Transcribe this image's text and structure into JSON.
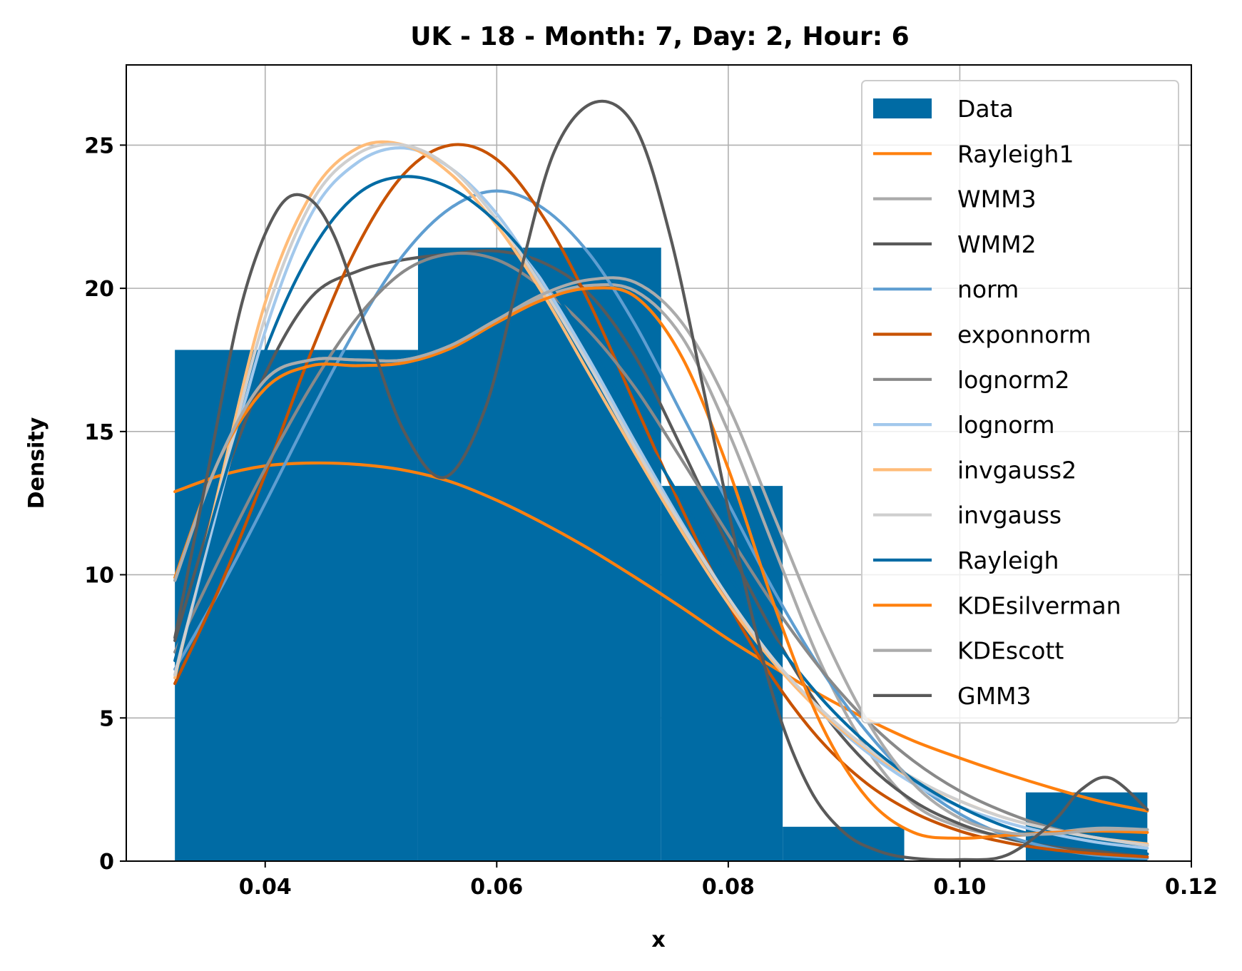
{
  "chart_data": {
    "type": "bar",
    "title": "UK - 18 - Month: 7, Day: 2, Hour: 6",
    "xlabel": "x",
    "ylabel": "Density",
    "xlim": [
      0.028,
      0.12
    ],
    "ylim": [
      0,
      27.8
    ],
    "xticks": [
      0.04,
      0.06,
      0.08,
      0.1,
      0.12
    ],
    "xtick_labels": [
      "0.04",
      "0.06",
      "0.08",
      "0.10",
      "0.12"
    ],
    "yticks": [
      0,
      5,
      10,
      15,
      20,
      25
    ],
    "ytick_labels": [
      "0",
      "5",
      "10",
      "15",
      "20",
      "25"
    ],
    "grid": true,
    "legend_position": "top-right",
    "histogram": {
      "name": "Data",
      "color": "#006BA4",
      "bins": [
        {
          "x0": 0.0322,
          "x1": 0.0532,
          "value": 17.85
        },
        {
          "x0": 0.0532,
          "x1": 0.0742,
          "value": 21.42
        },
        {
          "x0": 0.0742,
          "x1": 0.0847,
          "value": 13.1
        },
        {
          "x0": 0.0847,
          "x1": 0.0952,
          "value": 1.2
        },
        {
          "x0": 0.0952,
          "x1": 0.1057,
          "value": 0
        },
        {
          "x0": 0.1057,
          "x1": 0.1162,
          "value": 2.4
        }
      ]
    },
    "series": [
      {
        "name": "Rayleigh1",
        "color": "#FF800E",
        "x": [
          0.0322,
          0.036,
          0.04,
          0.044,
          0.048,
          0.052,
          0.056,
          0.06,
          0.064,
          0.068,
          0.072,
          0.076,
          0.08,
          0.084,
          0.088,
          0.092,
          0.096,
          0.1,
          0.104,
          0.108,
          0.112,
          0.1162
        ],
        "y": [
          12.9,
          13.45,
          13.8,
          13.9,
          13.85,
          13.65,
          13.25,
          12.6,
          11.8,
          10.9,
          9.9,
          8.85,
          7.75,
          6.75,
          5.8,
          4.95,
          4.2,
          3.6,
          3.05,
          2.55,
          2.1,
          1.75
        ]
      },
      {
        "name": "WMM3",
        "color": "#ABABAB",
        "x": [
          0.0322,
          0.036,
          0.04,
          0.044,
          0.048,
          0.052,
          0.056,
          0.06,
          0.064,
          0.068,
          0.072,
          0.076,
          0.08,
          0.084,
          0.088,
          0.092,
          0.096,
          0.1,
          0.104,
          0.108,
          0.112,
          0.1162
        ],
        "y": [
          9.8,
          14.0,
          16.8,
          17.5,
          17.5,
          17.5,
          18.0,
          18.9,
          19.7,
          20.1,
          19.9,
          18.3,
          15.0,
          10.9,
          6.9,
          3.9,
          2.0,
          1.2,
          0.9,
          1.0,
          1.15,
          1.1
        ]
      },
      {
        "name": "WMM2",
        "color": "#595959",
        "x": [
          0.0322,
          0.036,
          0.04,
          0.044,
          0.048,
          0.052,
          0.056,
          0.06,
          0.064,
          0.068,
          0.072,
          0.076,
          0.08,
          0.084,
          0.088,
          0.092,
          0.096,
          0.1,
          0.104,
          0.108,
          0.112,
          0.1162
        ],
        "y": [
          7.7,
          12.8,
          17.0,
          19.7,
          20.6,
          21.0,
          21.2,
          21.3,
          20.9,
          19.8,
          17.6,
          14.4,
          11.0,
          7.9,
          5.3,
          3.4,
          2.1,
          1.3,
          0.8,
          0.5,
          0.35,
          0.25
        ]
      },
      {
        "name": "norm",
        "color": "#5F9ED1",
        "x": [
          0.0322,
          0.036,
          0.04,
          0.044,
          0.048,
          0.052,
          0.056,
          0.06,
          0.064,
          0.068,
          0.072,
          0.076,
          0.08,
          0.084,
          0.088,
          0.092,
          0.096,
          0.1,
          0.104,
          0.108,
          0.112,
          0.1162
        ],
        "y": [
          6.7,
          9.4,
          12.5,
          15.7,
          18.7,
          21.2,
          22.8,
          23.4,
          22.8,
          21.2,
          18.7,
          15.6,
          12.5,
          9.4,
          6.7,
          4.5,
          2.8,
          1.65,
          0.9,
          0.45,
          0.2,
          0.1
        ]
      },
      {
        "name": "exponnorm",
        "color": "#C85200",
        "x": [
          0.0322,
          0.036,
          0.04,
          0.044,
          0.048,
          0.052,
          0.056,
          0.06,
          0.064,
          0.068,
          0.072,
          0.076,
          0.08,
          0.084,
          0.088,
          0.092,
          0.096,
          0.1,
          0.104,
          0.108,
          0.112,
          0.1162
        ],
        "y": [
          6.2,
          9.5,
          13.5,
          17.8,
          21.5,
          24.0,
          25.0,
          24.5,
          22.5,
          19.5,
          15.9,
          12.3,
          9.0,
          6.3,
          4.2,
          2.7,
          1.7,
          1.05,
          0.65,
          0.4,
          0.25,
          0.15
        ]
      },
      {
        "name": "lognorm2",
        "color": "#898989",
        "x": [
          0.0322,
          0.036,
          0.04,
          0.044,
          0.048,
          0.052,
          0.056,
          0.06,
          0.064,
          0.068,
          0.072,
          0.076,
          0.08,
          0.084,
          0.088,
          0.092,
          0.096,
          0.1,
          0.104,
          0.108,
          0.112,
          0.1162
        ],
        "y": [
          7.3,
          10.5,
          13.7,
          16.6,
          19.0,
          20.6,
          21.2,
          21.0,
          20.0,
          18.5,
          16.5,
          14.0,
          11.4,
          8.9,
          6.7,
          4.9,
          3.5,
          2.45,
          1.7,
          1.15,
          0.8,
          0.55
        ]
      },
      {
        "name": "lognorm",
        "color": "#A2C8EC",
        "x": [
          0.0322,
          0.036,
          0.04,
          0.044,
          0.048,
          0.052,
          0.056,
          0.06,
          0.064,
          0.068,
          0.072,
          0.076,
          0.08,
          0.084,
          0.088,
          0.092,
          0.096,
          0.1,
          0.104,
          0.108,
          0.112,
          0.1162
        ],
        "y": [
          6.5,
          12.5,
          18.5,
          22.6,
          24.4,
          24.9,
          24.2,
          22.6,
          20.2,
          17.5,
          14.6,
          11.8,
          9.2,
          7.0,
          5.2,
          3.8,
          2.7,
          1.9,
          1.35,
          0.95,
          0.65,
          0.45
        ]
      },
      {
        "name": "invgauss2",
        "color": "#FFBC79",
        "x": [
          0.0322,
          0.036,
          0.04,
          0.044,
          0.048,
          0.052,
          0.056,
          0.06,
          0.064,
          0.068,
          0.072,
          0.076,
          0.08,
          0.084,
          0.088,
          0.092,
          0.096,
          0.1,
          0.104,
          0.108,
          0.112,
          0.1162
        ],
        "y": [
          6.4,
          13.0,
          19.5,
          23.3,
          24.9,
          25.0,
          24.0,
          22.2,
          19.8,
          17.0,
          14.2,
          11.5,
          9.0,
          6.9,
          5.2,
          3.9,
          2.85,
          2.1,
          1.5,
          1.1,
          0.8,
          0.6
        ]
      },
      {
        "name": "invgauss",
        "color": "#CFCFCF",
        "x": [
          0.0322,
          0.036,
          0.04,
          0.044,
          0.048,
          0.052,
          0.056,
          0.06,
          0.064,
          0.068,
          0.072,
          0.076,
          0.08,
          0.084,
          0.088,
          0.092,
          0.096,
          0.1,
          0.104,
          0.108,
          0.112,
          0.1162
        ],
        "y": [
          6.5,
          12.8,
          19.0,
          23.0,
          24.7,
          25.0,
          24.2,
          22.4,
          20.0,
          17.3,
          14.4,
          11.7,
          9.2,
          7.0,
          5.3,
          3.95,
          2.9,
          2.1,
          1.5,
          1.1,
          0.8,
          0.55
        ]
      },
      {
        "name": "Rayleigh",
        "color": "#006BA4",
        "x": [
          0.0322,
          0.036,
          0.04,
          0.044,
          0.048,
          0.052,
          0.056,
          0.06,
          0.064,
          0.068,
          0.072,
          0.076,
          0.08,
          0.084,
          0.088,
          0.092,
          0.096,
          0.1,
          0.104,
          0.108,
          0.112,
          0.1162
        ],
        "y": [
          7.0,
          12.7,
          17.8,
          21.3,
          23.3,
          23.9,
          23.5,
          22.3,
          20.4,
          18.0,
          15.3,
          12.6,
          10.0,
          7.7,
          5.7,
          4.1,
          2.85,
          1.9,
          1.2,
          0.75,
          0.45,
          0.25
        ]
      },
      {
        "name": "KDEsilverman",
        "color": "#FF800E",
        "x": [
          0.0322,
          0.036,
          0.04,
          0.044,
          0.048,
          0.052,
          0.056,
          0.06,
          0.064,
          0.068,
          0.072,
          0.076,
          0.08,
          0.084,
          0.088,
          0.092,
          0.096,
          0.1,
          0.104,
          0.108,
          0.112,
          0.1162
        ],
        "y": [
          9.9,
          14.0,
          16.5,
          17.3,
          17.3,
          17.4,
          17.9,
          18.8,
          19.6,
          20.0,
          19.7,
          17.6,
          13.7,
          8.9,
          4.8,
          2.2,
          1.0,
          0.8,
          0.9,
          1.0,
          1.05,
          1.0
        ]
      },
      {
        "name": "KDEscott",
        "color": "#ABABAB",
        "x": [
          0.0322,
          0.036,
          0.04,
          0.044,
          0.048,
          0.052,
          0.056,
          0.06,
          0.064,
          0.068,
          0.072,
          0.076,
          0.08,
          0.084,
          0.088,
          0.092,
          0.096,
          0.1,
          0.104,
          0.108,
          0.112,
          0.1162
        ],
        "y": [
          9.8,
          14.0,
          16.8,
          17.5,
          17.5,
          17.5,
          18.0,
          18.9,
          19.8,
          20.3,
          20.2,
          18.8,
          15.9,
          12.0,
          8.1,
          4.9,
          2.7,
          1.5,
          1.0,
          0.95,
          1.1,
          1.1
        ]
      },
      {
        "name": "GMM3",
        "color": "#595959",
        "x": [
          0.0322,
          0.035,
          0.038,
          0.041,
          0.0435,
          0.046,
          0.049,
          0.052,
          0.0555,
          0.059,
          0.062,
          0.065,
          0.0685,
          0.072,
          0.075,
          0.078,
          0.081,
          0.084,
          0.087,
          0.09,
          0.093,
          0.096,
          0.1,
          0.104,
          0.108,
          0.1105,
          0.113,
          0.1162
        ],
        "y": [
          7.8,
          13.5,
          19.5,
          22.7,
          23.2,
          21.8,
          18.3,
          15.0,
          13.4,
          15.8,
          20.5,
          24.8,
          26.5,
          25.6,
          21.8,
          16.2,
          10.4,
          5.6,
          2.55,
          1.0,
          0.35,
          0.1,
          0.05,
          0.2,
          1.35,
          2.5,
          2.9,
          1.8
        ]
      }
    ]
  }
}
